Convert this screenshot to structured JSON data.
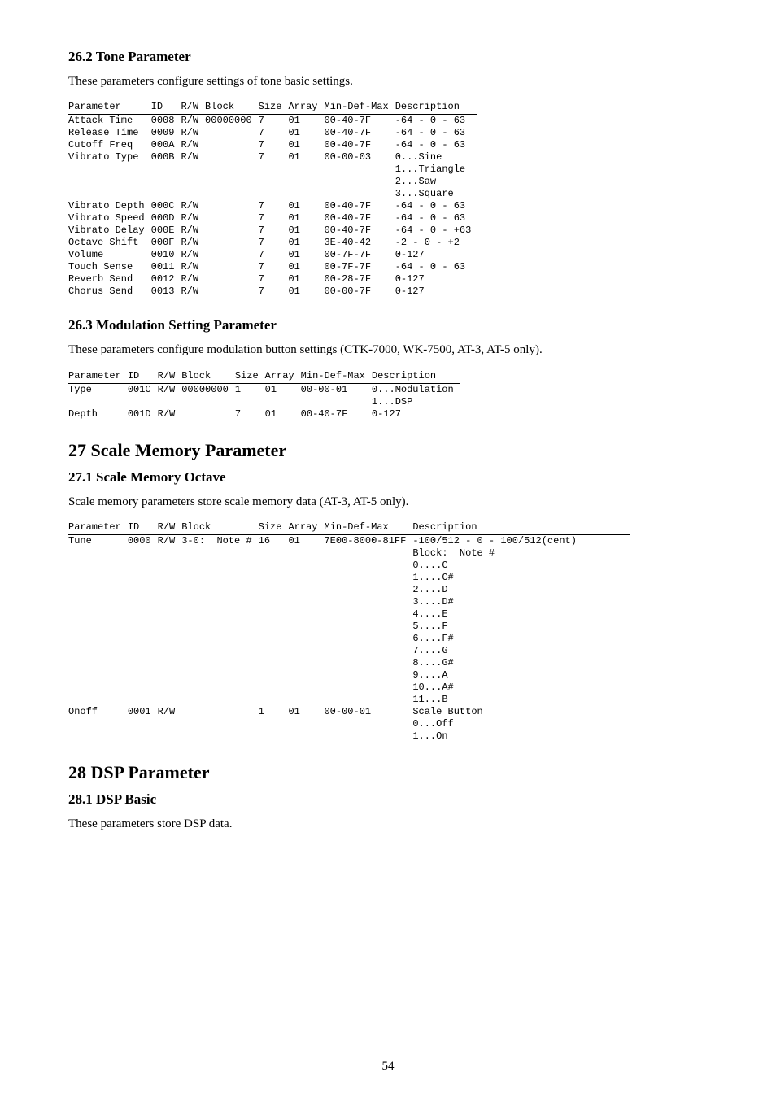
{
  "section_26_2": {
    "heading": "26.2   Tone Parameter",
    "desc": "These parameters configure settings of tone basic settings.",
    "headers": [
      "Parameter",
      "ID",
      "R/W",
      "Block",
      "Size",
      "Array",
      "Min-Def-Max",
      "Description"
    ],
    "rows": [
      {
        "c": [
          "Attack Time",
          "0008",
          "R/W",
          "00000000",
          "7",
          "01",
          "00-40-7F",
          "-64 - 0 - 63"
        ]
      },
      {
        "c": [
          "Release Time",
          "0009",
          "R/W",
          "",
          "7",
          "01",
          "00-40-7F",
          "-64 - 0 - 63"
        ]
      },
      {
        "c": [
          "Cutoff Freq",
          "000A",
          "R/W",
          "",
          "7",
          "01",
          "00-40-7F",
          "-64 - 0 - 63"
        ]
      },
      {
        "c": [
          "Vibrato Type",
          "000B",
          "R/W",
          "",
          "7",
          "01",
          "00-00-03",
          ""
        ],
        "desc": [
          "0...Sine",
          "1...Triangle",
          "2...Saw",
          "3...Square"
        ]
      },
      {
        "c": [
          "Vibrato Depth",
          "000C",
          "R/W",
          "",
          "7",
          "01",
          "00-40-7F",
          "-64 - 0 - 63"
        ]
      },
      {
        "c": [
          "Vibrato Speed",
          "000D",
          "R/W",
          "",
          "7",
          "01",
          "00-40-7F",
          "-64 - 0 - 63"
        ]
      },
      {
        "c": [
          "Vibrato Delay",
          "000E",
          "R/W",
          "",
          "7",
          "01",
          "00-40-7F",
          "-64 - 0 - +63"
        ]
      },
      {
        "c": [
          "Octave Shift",
          "000F",
          "R/W",
          "",
          "7",
          "01",
          "3E-40-42",
          "-2 - 0 - +2"
        ]
      },
      {
        "c": [
          "Volume",
          "0010",
          "R/W",
          "",
          "7",
          "01",
          "00-7F-7F",
          "0-127"
        ]
      },
      {
        "c": [
          "Touch Sense",
          "0011",
          "R/W",
          "",
          "7",
          "01",
          "00-7F-7F",
          "-64 - 0 - 63"
        ]
      },
      {
        "c": [
          "Reverb Send",
          "0012",
          "R/W",
          "",
          "7",
          "01",
          "00-28-7F",
          "0-127"
        ]
      },
      {
        "c": [
          "Chorus Send",
          "0013",
          "R/W",
          "",
          "7",
          "01",
          "00-00-7F",
          "0-127"
        ]
      }
    ]
  },
  "section_26_3": {
    "heading": "26.3   Modulation Setting Parameter",
    "desc": "These parameters configure modulation button settings (CTK-7000, WK-7500, AT-3, AT-5 only).",
    "headers": [
      "Parameter",
      "ID",
      "R/W",
      "Block",
      "Size",
      "Array",
      "Min-Def-Max",
      "Description"
    ],
    "rows": [
      {
        "c": [
          "Type",
          "001C",
          "R/W",
          "00000000",
          "1",
          "01",
          "00-00-01",
          ""
        ],
        "desc": [
          "0...Modulation",
          "1...DSP"
        ]
      },
      {
        "c": [
          "Depth",
          "001D",
          "R/W",
          "",
          "7",
          "01",
          "00-40-7F",
          "0-127"
        ]
      }
    ]
  },
  "chapter_27": {
    "heading": "27   Scale Memory Parameter"
  },
  "section_27_1": {
    "heading": "27.1   Scale Memory Octave",
    "desc": "Scale memory parameters store scale memory data (AT-3, AT-5 only).",
    "headers": [
      "Parameter",
      "ID",
      "R/W",
      "Block",
      "Size",
      "Array",
      "Min-Def-Max",
      "Description"
    ],
    "rows": [
      {
        "c": [
          "Tune",
          "0000",
          "R/W",
          "3-0:  Note #",
          "16",
          "01",
          "7E00-8000-81FF",
          ""
        ],
        "desc": [
          "-100/512 - 0 - 100/512(cent)",
          "Block:  Note #",
          "0....C",
          "1....C#",
          "2....D",
          "3....D#",
          "4....E",
          "5....F",
          "6....F#",
          "7....G",
          "8....G#",
          "9....A",
          "10...A#",
          "11...B"
        ]
      },
      {
        "c": [
          "Onoff",
          "0001",
          "R/W",
          "",
          "1",
          "01",
          "00-00-01",
          ""
        ],
        "desc": [
          "Scale Button",
          "0...Off",
          "1...On"
        ]
      }
    ]
  },
  "chapter_28": {
    "heading": "28   DSP Parameter"
  },
  "section_28_1": {
    "heading": "28.1   DSP Basic",
    "desc": "These parameters store DSP data."
  },
  "page_number": "54"
}
